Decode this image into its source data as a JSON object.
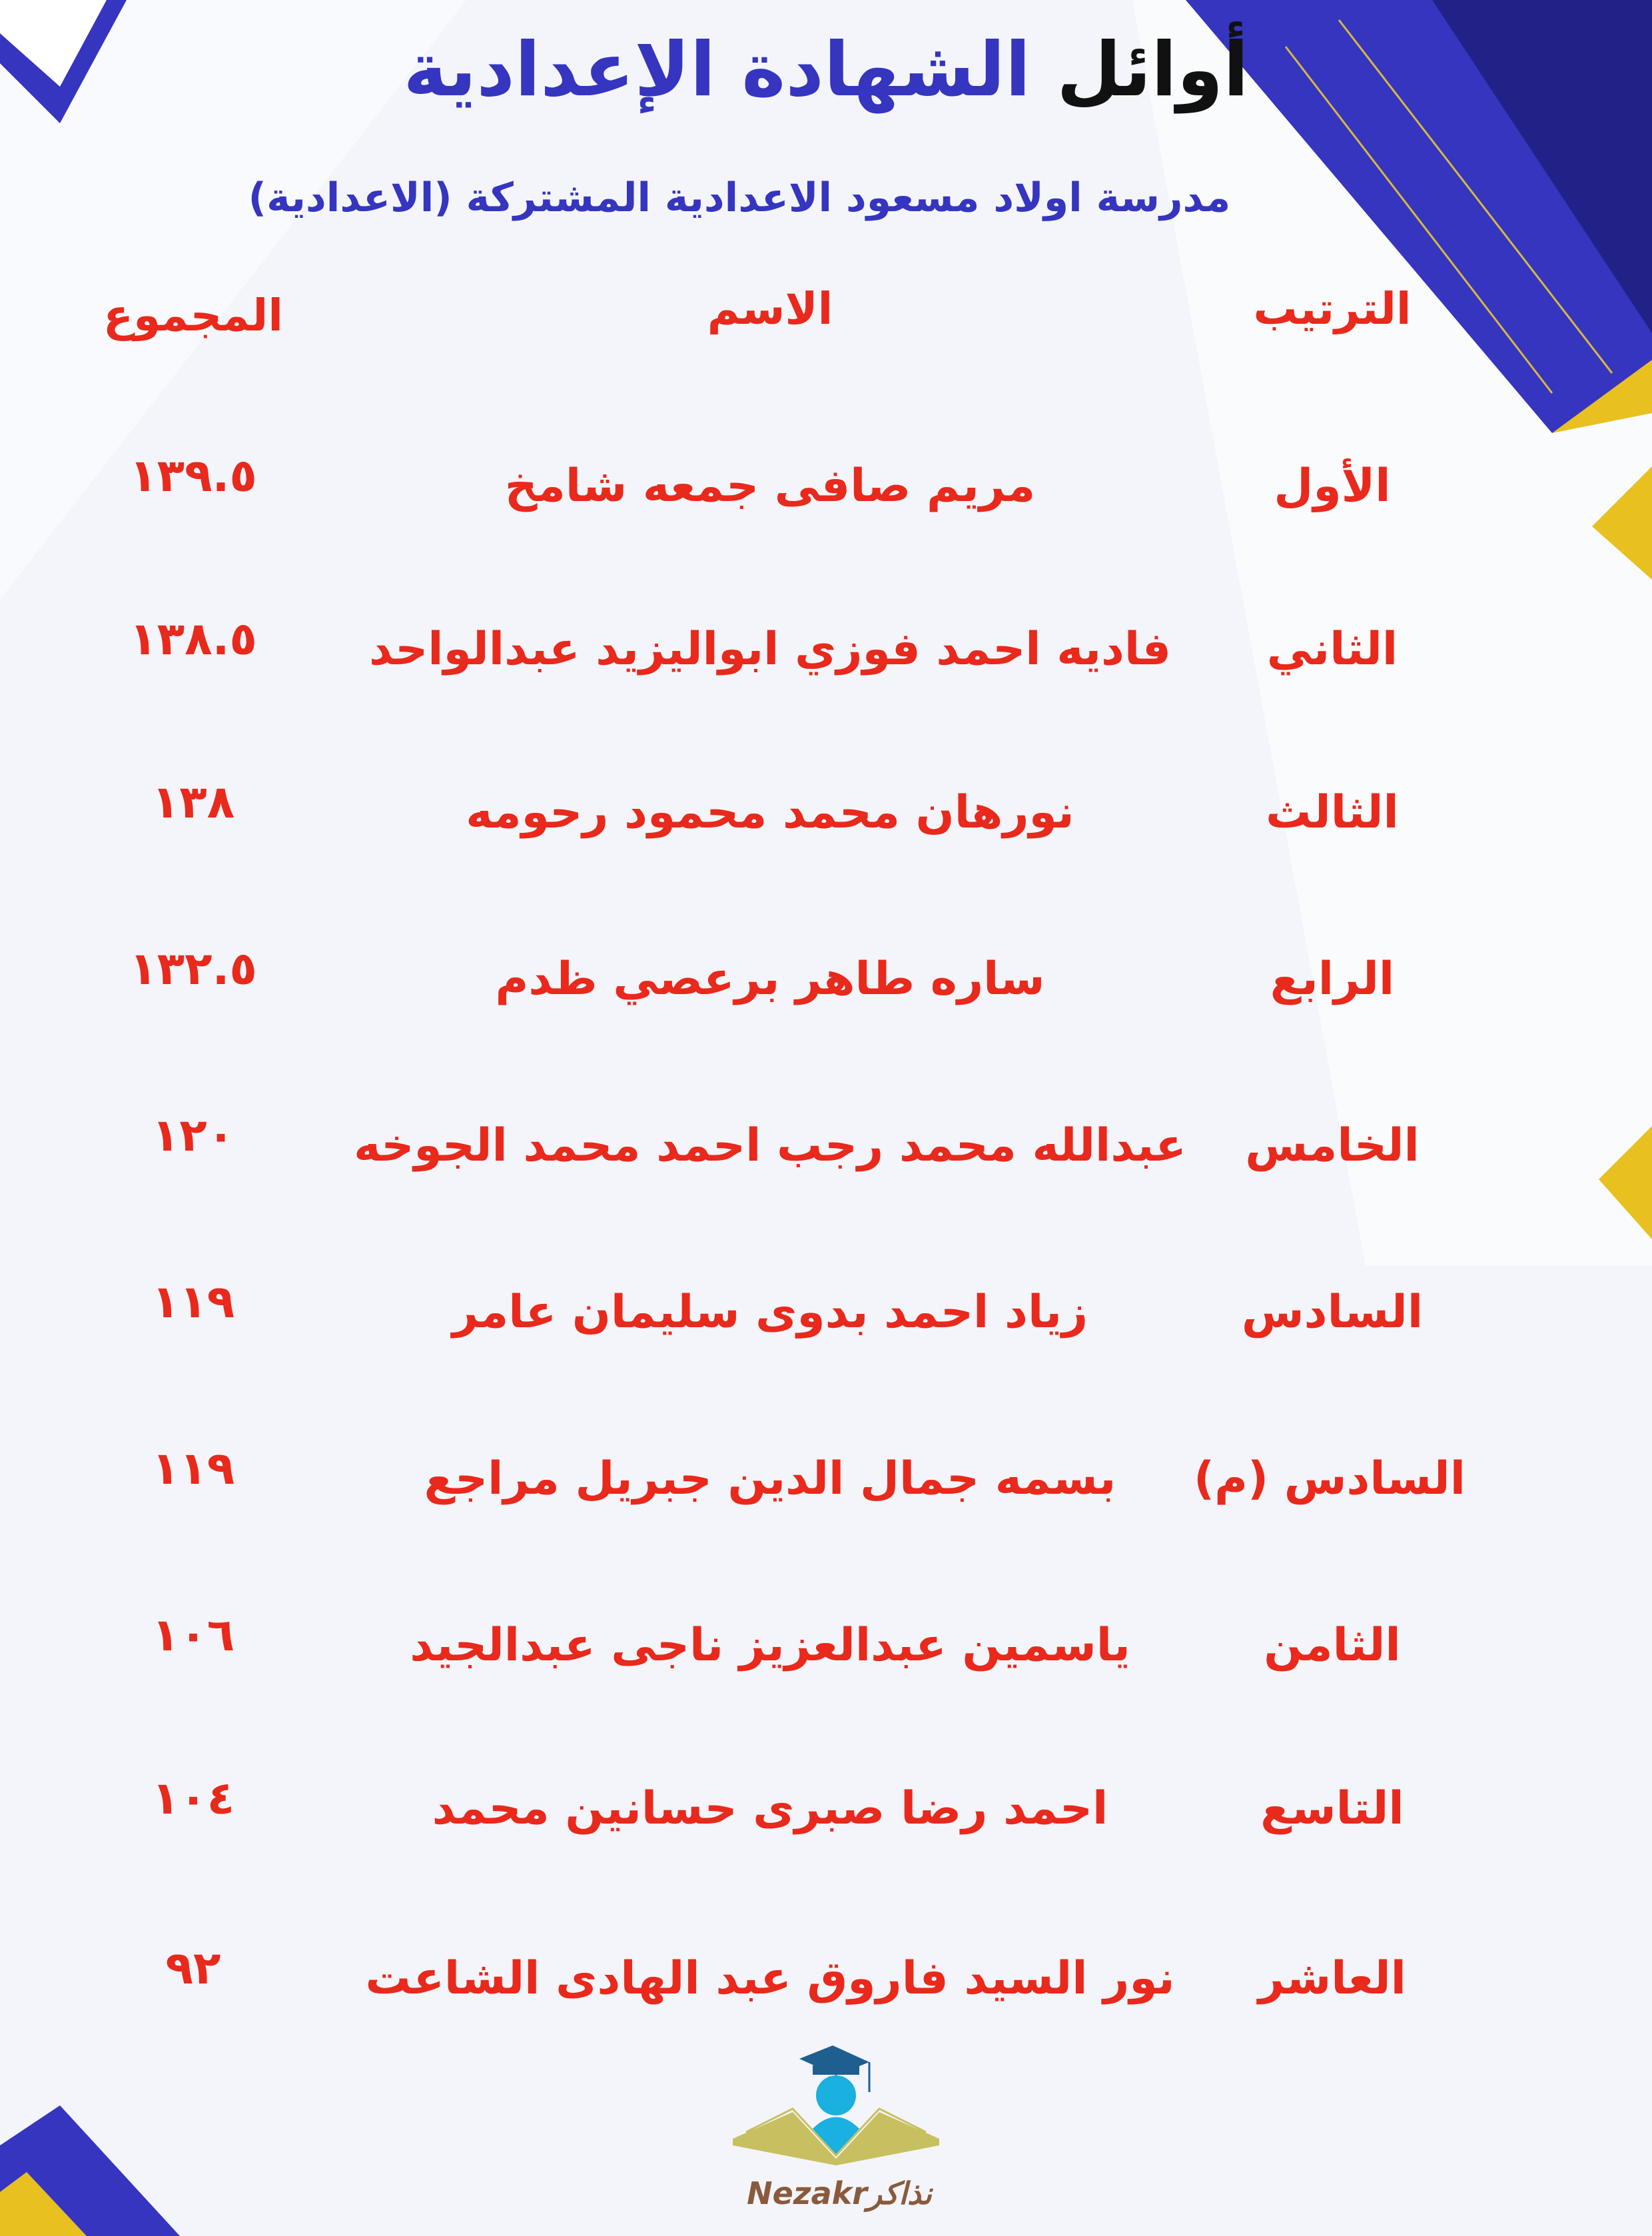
{
  "title": {
    "part1": "أوائل",
    "part2": "الشهادة الإعدادية"
  },
  "subtitle": "مدرسة اولاد مسعود الاعدادية المشتركة (الاعدادية)",
  "headers": {
    "rank": "الترتيب",
    "name": "الاسم",
    "total": "المجموع"
  },
  "rows": [
    {
      "rank": "الأول",
      "name": "مريم صافى جمعه شامخ",
      "total": "١٣٩.٥"
    },
    {
      "rank": "الثاني",
      "name": "فاديه احمد فوزي ابواليزيد عبدالواحد",
      "total": "١٣٨.٥"
    },
    {
      "rank": "الثالث",
      "name": "نورهان محمد محمود رحومه",
      "total": "١٣٨"
    },
    {
      "rank": "الرابع",
      "name": "ساره طاهر برعصي ظدم",
      "total": "١٣٢.٥"
    },
    {
      "rank": "الخامس",
      "name": "عبدالله محمد رجب احمد محمد الجوخه",
      "total": "١٢٠"
    },
    {
      "rank": "السادس",
      "name": "زياد احمد بدوى سليمان عامر",
      "total": "١١٩"
    },
    {
      "rank": "السادس (م)",
      "name": "بسمه جمال الدين جبريل مراجع",
      "total": "١١٩"
    },
    {
      "rank": "الثامن",
      "name": "ياسمين عبدالعزيز ناجى عبدالجيد",
      "total": "١٠٦"
    },
    {
      "rank": "التاسع",
      "name": "احمد رضا صبرى حسانين محمد",
      "total": "١٠٤"
    },
    {
      "rank": "العاشر",
      "name": "نور السيد فاروق عبد الهادى الشاعت",
      "total": "٩٢"
    }
  ],
  "logo": {
    "latin": "Nezakr",
    "arabic": "نذاكر"
  },
  "colors": {
    "accent_blue": "#3535c0",
    "text_red": "#e8291c",
    "gold": "#e8c020"
  }
}
